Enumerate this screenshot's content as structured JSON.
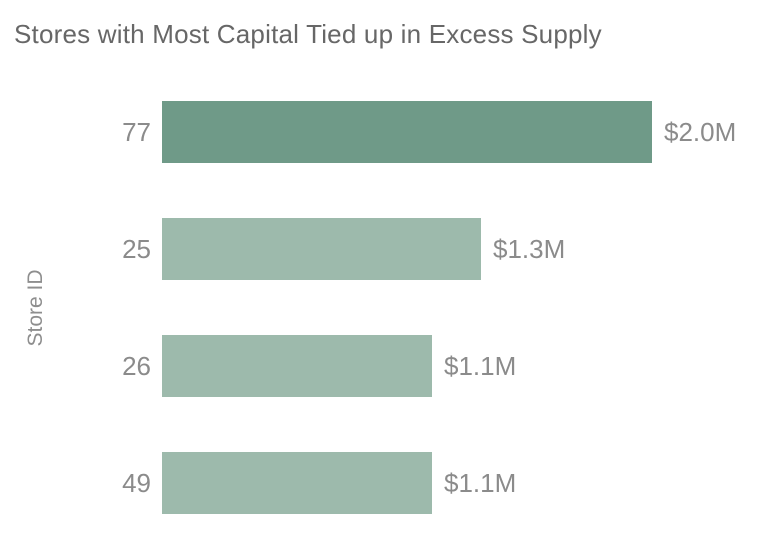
{
  "chart_data": {
    "type": "bar",
    "orientation": "horizontal",
    "title": "Stores with Most Capital Tied up in Excess Supply",
    "xlabel": "",
    "ylabel": "Store ID",
    "categories": [
      "77",
      "25",
      "26",
      "49"
    ],
    "values": [
      2.0,
      1.3,
      1.1,
      1.1
    ],
    "value_labels": [
      "$2.0M",
      "$1.3M",
      "$1.1M",
      "$1.1M"
    ],
    "xlim": [
      0,
      2.0
    ],
    "grid": false,
    "legend": false,
    "bar_colors": [
      "#6F9A88",
      "#9DBAAC",
      "#9DBAAC",
      "#9DBAAC"
    ],
    "colors": {
      "bar_highlight": "#6F9A88",
      "bar_default": "#9DBAAC",
      "title_text": "#676767",
      "label_text": "#8B8B8B"
    }
  }
}
